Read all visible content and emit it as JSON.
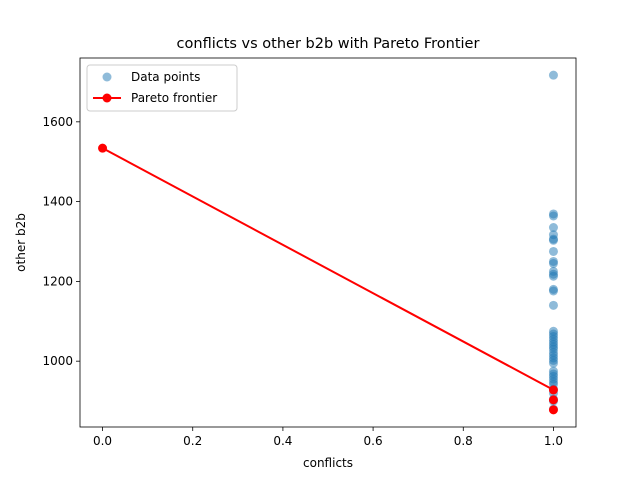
{
  "chart_data": {
    "type": "scatter",
    "title": "conflicts vs other b2b with Pareto Frontier",
    "xlabel": "conflicts",
    "ylabel": "other b2b",
    "xlim": [
      -0.05,
      1.05
    ],
    "ylim": [
      835,
      1760
    ],
    "x_ticks": [
      0.0,
      0.2,
      0.4,
      0.6,
      0.8,
      1.0
    ],
    "x_tick_labels": [
      "0.0",
      "0.2",
      "0.4",
      "0.6",
      "0.8",
      "1.0"
    ],
    "y_ticks": [
      1000,
      1200,
      1400,
      1600
    ],
    "y_tick_labels": [
      "1000",
      "1200",
      "1400",
      "1600"
    ],
    "grid": false,
    "legend_position": "top-left",
    "series": [
      {
        "name": "Data points",
        "kind": "scatter",
        "color": "#1f77b4",
        "alpha": 0.5,
        "points": [
          [
            1,
            1717
          ],
          [
            1,
            1369
          ],
          [
            1,
            1364
          ],
          [
            1,
            1335
          ],
          [
            1,
            1317
          ],
          [
            1,
            1306
          ],
          [
            1,
            1303
          ],
          [
            1,
            1275
          ],
          [
            1,
            1250
          ],
          [
            1,
            1245
          ],
          [
            1,
            1225
          ],
          [
            1,
            1218
          ],
          [
            1,
            1213
          ],
          [
            1,
            1180
          ],
          [
            1,
            1176
          ],
          [
            1,
            1140
          ],
          [
            1,
            1075
          ],
          [
            1,
            1068
          ],
          [
            1,
            1062
          ],
          [
            1,
            1055
          ],
          [
            1,
            1048
          ],
          [
            1,
            1042
          ],
          [
            1,
            1036
          ],
          [
            1,
            1030
          ],
          [
            1,
            1022
          ],
          [
            1,
            1015
          ],
          [
            1,
            1008
          ],
          [
            1,
            1002
          ],
          [
            1,
            995
          ],
          [
            1,
            975
          ],
          [
            1,
            968
          ],
          [
            1,
            962
          ],
          [
            1,
            955
          ],
          [
            1,
            948
          ],
          [
            1,
            942
          ],
          [
            1,
            930
          ],
          [
            1,
            920
          ],
          [
            1,
            905
          ],
          [
            1,
            900
          ],
          [
            1,
            880
          ]
        ]
      },
      {
        "name": "Pareto frontier",
        "kind": "line",
        "color": "#ff0000",
        "points": [
          [
            0,
            1534
          ],
          [
            1,
            928
          ]
        ],
        "markers": [
          [
            0,
            1534
          ],
          [
            1,
            928
          ],
          [
            1,
            903
          ],
          [
            1,
            878
          ]
        ]
      }
    ]
  }
}
